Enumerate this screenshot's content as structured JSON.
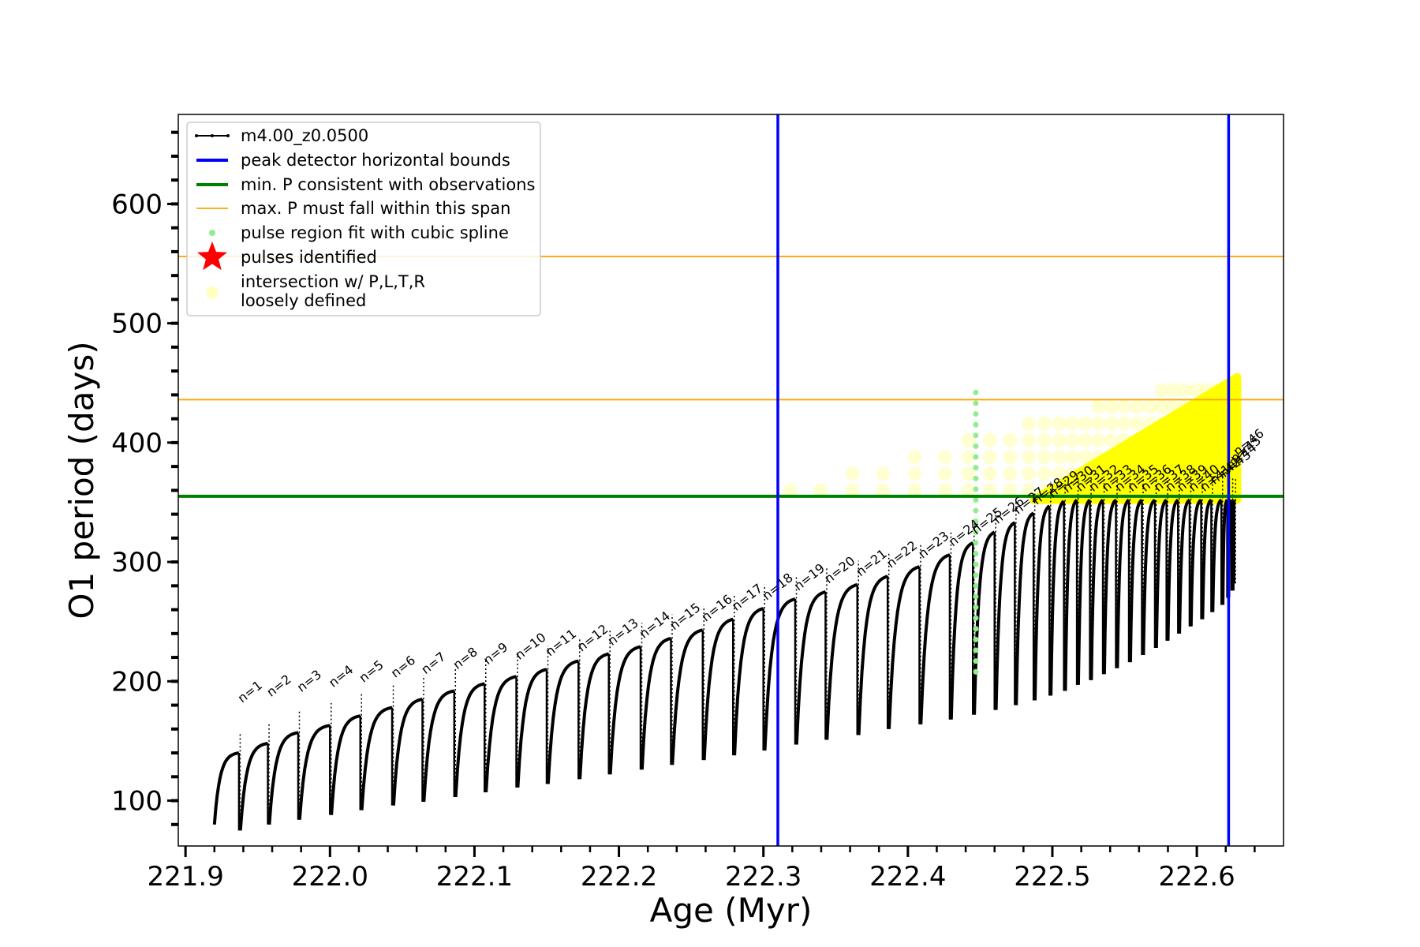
{
  "chart_data": {
    "type": "line",
    "title": "",
    "xlabel": "Age (Myr)",
    "ylabel": "O1 period (days)",
    "xlim": [
      221.895,
      222.66
    ],
    "ylim": [
      62,
      675
    ],
    "xticks": [
      221.9,
      222.0,
      222.1,
      222.2,
      222.3,
      222.4,
      222.5,
      222.6
    ],
    "xtick_labels": [
      "221.9",
      "222.0",
      "222.1",
      "222.2",
      "222.3",
      "222.4",
      "222.5",
      "222.6"
    ],
    "yticks": [
      100,
      200,
      300,
      400,
      500,
      600
    ],
    "ytick_labels": [
      "100",
      "200",
      "300",
      "400",
      "500",
      "600"
    ],
    "grid": false,
    "legend_position": "top-left",
    "series": [
      {
        "name": "m4.00_z0.0500",
        "color": "#000000",
        "description_kind": "thermal pulse cycles",
        "pulses": [
          {
            "x": 221.937,
            "min": 75,
            "max": 140
          },
          {
            "x": 221.957,
            "min": 80,
            "max": 148
          },
          {
            "x": 221.978,
            "min": 84,
            "max": 157
          },
          {
            "x": 222.0,
            "min": 88,
            "max": 163
          },
          {
            "x": 222.021,
            "min": 92,
            "max": 171
          },
          {
            "x": 222.043,
            "min": 96,
            "max": 178
          },
          {
            "x": 222.064,
            "min": 99,
            "max": 185
          },
          {
            "x": 222.086,
            "min": 103,
            "max": 192
          },
          {
            "x": 222.107,
            "min": 107,
            "max": 198
          },
          {
            "x": 222.129,
            "min": 111,
            "max": 204
          },
          {
            "x": 222.15,
            "min": 114,
            "max": 210
          },
          {
            "x": 222.172,
            "min": 118,
            "max": 217
          },
          {
            "x": 222.193,
            "min": 122,
            "max": 223
          },
          {
            "x": 222.215,
            "min": 126,
            "max": 229
          },
          {
            "x": 222.236,
            "min": 130,
            "max": 236
          },
          {
            "x": 222.258,
            "min": 134,
            "max": 243
          },
          {
            "x": 222.279,
            "min": 138,
            "max": 252
          },
          {
            "x": 222.3,
            "min": 142,
            "max": 261
          },
          {
            "x": 222.322,
            "min": 147,
            "max": 269
          },
          {
            "x": 222.343,
            "min": 151,
            "max": 275
          },
          {
            "x": 222.365,
            "min": 155,
            "max": 281
          },
          {
            "x": 222.386,
            "min": 160,
            "max": 288
          },
          {
            "x": 222.408,
            "min": 164,
            "max": 296
          },
          {
            "x": 222.429,
            "min": 168,
            "max": 306
          },
          {
            "x": 222.445,
            "min": 172,
            "max": 316
          },
          {
            "x": 222.46,
            "min": 176,
            "max": 325
          },
          {
            "x": 222.474,
            "min": 180,
            "max": 333
          },
          {
            "x": 222.487,
            "min": 184,
            "max": 341
          },
          {
            "x": 222.498,
            "min": 188,
            "max": 347
          },
          {
            "x": 222.508,
            "min": 192,
            "max": 351
          },
          {
            "x": 222.517,
            "min": 197,
            "max": 352
          },
          {
            "x": 222.526,
            "min": 201,
            "max": 352
          },
          {
            "x": 222.535,
            "min": 206,
            "max": 352
          },
          {
            "x": 222.544,
            "min": 211,
            "max": 352
          },
          {
            "x": 222.553,
            "min": 216,
            "max": 352
          },
          {
            "x": 222.562,
            "min": 222,
            "max": 352
          },
          {
            "x": 222.571,
            "min": 228,
            "max": 352
          },
          {
            "x": 222.579,
            "min": 234,
            "max": 352
          },
          {
            "x": 222.587,
            "min": 240,
            "max": 352
          },
          {
            "x": 222.595,
            "min": 246,
            "max": 352
          },
          {
            "x": 222.603,
            "min": 252,
            "max": 352
          },
          {
            "x": 222.61,
            "min": 258,
            "max": 352
          },
          {
            "x": 222.617,
            "min": 264,
            "max": 352
          },
          {
            "x": 222.621,
            "min": 270,
            "max": 352
          },
          {
            "x": 222.624,
            "min": 276,
            "max": 352
          },
          {
            "x": 222.626,
            "min": 282,
            "max": 352
          }
        ]
      }
    ],
    "vlines": {
      "name": "peak detector horizontal bounds",
      "color": "#0000ff",
      "x": [
        222.31,
        222.622
      ]
    },
    "green_line": {
      "name": "min. P consistent with observations",
      "color": "#008000",
      "y": 355
    },
    "orange_lines": {
      "name": "max. P must fall within this span",
      "color": "#ffa500",
      "y": [
        436,
        556
      ]
    },
    "spline_region": {
      "name": "pulse region fit with cubic spline",
      "color": "#90ee90",
      "x": 222.447,
      "y_range": [
        208,
        442
      ]
    },
    "pulses_identified": {
      "name": "pulses identified",
      "color": "#ff0000"
    },
    "loose_intersection": {
      "name": "intersection w/ P,L,T,R\nloosely defined",
      "color": "#ffff00",
      "x_range": [
        222.31,
        222.628
      ],
      "y_range": [
        355,
        455
      ]
    },
    "pulse_labels": [
      "n=1",
      "n=2",
      "n=3",
      "n=4",
      "n=5",
      "n=6",
      "n=7",
      "n=8",
      "n=9",
      "n=10",
      "n=11",
      "n=12",
      "n=13",
      "n=14",
      "n=15",
      "n=16",
      "n=17",
      "n=18",
      "n=19",
      "n=20",
      "n=21",
      "n=22",
      "n=23",
      "n=24",
      "n=25",
      "n=26",
      "n=27",
      "n=28",
      "n=29",
      "n=30",
      "n=31",
      "n=32",
      "n=33",
      "n=34",
      "n=35",
      "n=36",
      "n=37",
      "n=38",
      "n=39",
      "n=40",
      "n=41",
      "n=42",
      "n=43",
      "n=44",
      "n=45",
      "n=46"
    ],
    "legend": [
      {
        "label": "m4.00_z0.0500",
        "marker": "line-dot",
        "color": "#000000"
      },
      {
        "label": "peak detector horizontal bounds",
        "marker": "line",
        "color": "#0000ff"
      },
      {
        "label": "min. P consistent with observations",
        "marker": "line",
        "color": "#008000"
      },
      {
        "label": "max. P must fall within this span",
        "marker": "thin-line",
        "color": "#ffa500"
      },
      {
        "label": "pulse region fit with cubic spline",
        "marker": "dot",
        "color": "#90ee90"
      },
      {
        "label": "pulses identified",
        "marker": "star",
        "color": "#ff0000"
      },
      {
        "label": "intersection w/ P,L,T,R",
        "label2": "loosely defined",
        "marker": "pale-dot",
        "color": "#ffff99"
      }
    ]
  }
}
